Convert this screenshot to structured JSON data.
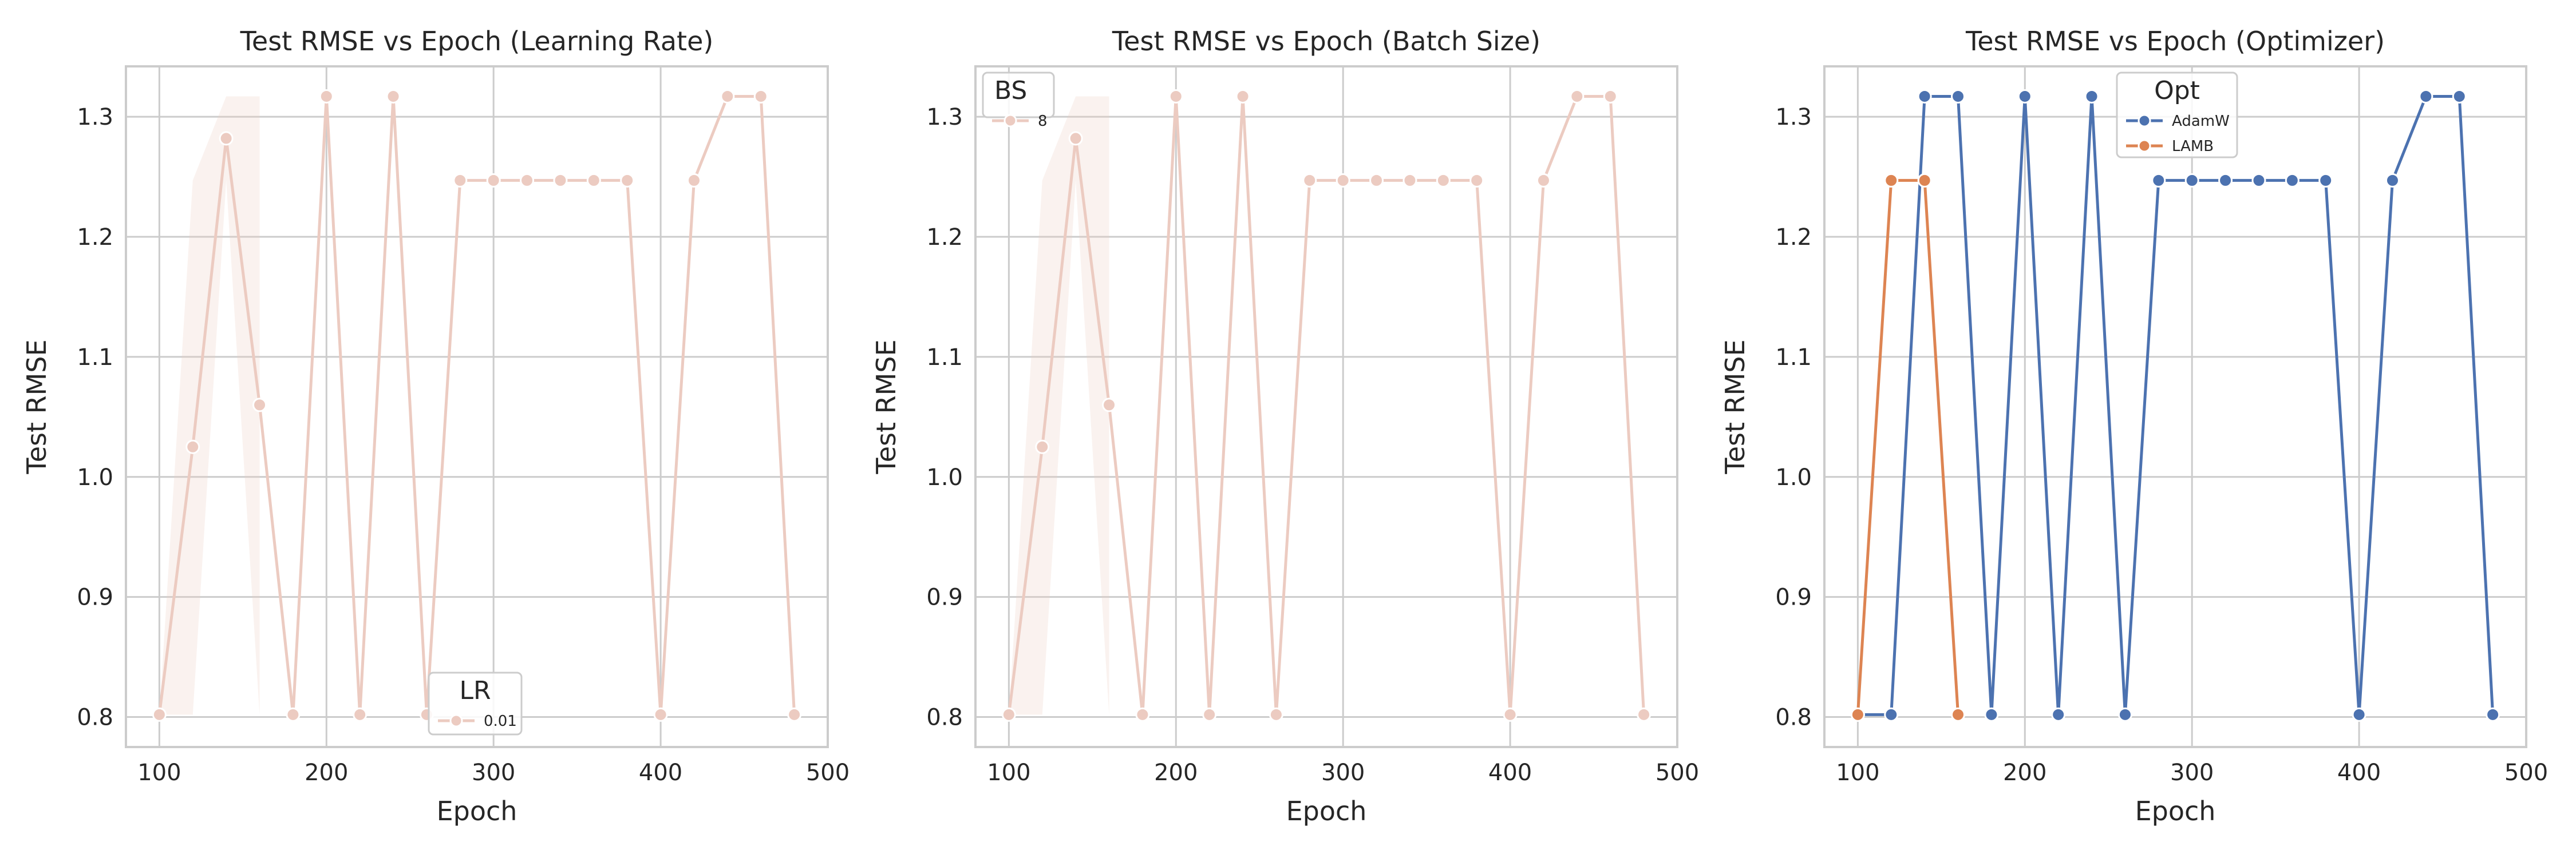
{
  "chart_data": [
    {
      "type": "line",
      "title": "Test RMSE vs Epoch (Learning Rate)",
      "xlabel": "Epoch",
      "ylabel": "Test RMSE",
      "xlim": [
        80,
        500
      ],
      "ylim": [
        0.775,
        1.342
      ],
      "xticks": [
        "100",
        "200",
        "300",
        "400",
        "500"
      ],
      "yticks": [
        "0.8",
        "0.9",
        "1.0",
        "1.1",
        "1.2",
        "1.3"
      ],
      "grid": true,
      "legend": {
        "title": "LR",
        "placement": "lower-center"
      },
      "x": [
        100,
        120,
        140,
        160,
        180,
        200,
        220,
        240,
        260,
        280,
        300,
        320,
        340,
        360,
        380,
        400,
        420,
        440,
        460,
        480
      ],
      "series": [
        {
          "name": "0.01",
          "color": "#eccbc1",
          "values": [
            0.802,
            1.025,
            1.282,
            1.06,
            0.802,
            1.317,
            0.802,
            1.317,
            0.802,
            1.247,
            1.247,
            1.247,
            1.247,
            1.247,
            1.247,
            0.802,
            1.247,
            1.317,
            1.317,
            0.802
          ],
          "band_x": [
            100,
            120,
            140,
            160
          ],
          "band_low": [
            0.802,
            0.802,
            1.247,
            0.802
          ],
          "band_high": [
            0.802,
            1.247,
            1.317,
            1.317
          ]
        }
      ]
    },
    {
      "type": "line",
      "title": "Test RMSE vs Epoch (Batch Size)",
      "xlabel": "Epoch",
      "ylabel": "Test RMSE",
      "xlim": [
        80,
        500
      ],
      "ylim": [
        0.775,
        1.342
      ],
      "xticks": [
        "100",
        "200",
        "300",
        "400",
        "500"
      ],
      "yticks": [
        "0.8",
        "0.9",
        "1.0",
        "1.1",
        "1.2",
        "1.3"
      ],
      "grid": true,
      "legend": {
        "title": "BS",
        "placement": "upper-left"
      },
      "x": [
        100,
        120,
        140,
        160,
        180,
        200,
        220,
        240,
        260,
        280,
        300,
        320,
        340,
        360,
        380,
        400,
        420,
        440,
        460,
        480
      ],
      "series": [
        {
          "name": "8",
          "color": "#eccbc1",
          "values": [
            0.802,
            1.025,
            1.282,
            1.06,
            0.802,
            1.317,
            0.802,
            1.317,
            0.802,
            1.247,
            1.247,
            1.247,
            1.247,
            1.247,
            1.247,
            0.802,
            1.247,
            1.317,
            1.317,
            0.802
          ],
          "band_x": [
            100,
            120,
            140,
            160
          ],
          "band_low": [
            0.802,
            0.802,
            1.247,
            0.802
          ],
          "band_high": [
            0.802,
            1.247,
            1.317,
            1.317
          ]
        }
      ]
    },
    {
      "type": "line",
      "title": "Test RMSE vs Epoch (Optimizer)",
      "xlabel": "Epoch",
      "ylabel": "Test RMSE",
      "xlim": [
        80,
        500
      ],
      "ylim": [
        0.775,
        1.342
      ],
      "xticks": [
        "100",
        "200",
        "300",
        "400",
        "500"
      ],
      "yticks": [
        "0.8",
        "0.9",
        "1.0",
        "1.1",
        "1.2",
        "1.3"
      ],
      "grid": true,
      "legend": {
        "title": "Opt",
        "placement": "upper-center"
      },
      "series": [
        {
          "name": "AdamW",
          "color": "#4c72b0",
          "x": [
            100,
            120,
            140,
            160,
            180,
            200,
            220,
            240,
            260,
            280,
            300,
            320,
            340,
            360,
            380,
            400,
            420,
            440,
            460,
            480
          ],
          "values": [
            0.802,
            0.802,
            1.317,
            1.317,
            0.802,
            1.317,
            0.802,
            1.317,
            0.802,
            1.247,
            1.247,
            1.247,
            1.247,
            1.247,
            1.247,
            0.802,
            1.247,
            1.317,
            1.317,
            0.802
          ]
        },
        {
          "name": "LAMB",
          "color": "#dd8452",
          "x": [
            100,
            120,
            140,
            160
          ],
          "values": [
            0.802,
            1.247,
            1.247,
            0.802
          ]
        }
      ]
    }
  ]
}
